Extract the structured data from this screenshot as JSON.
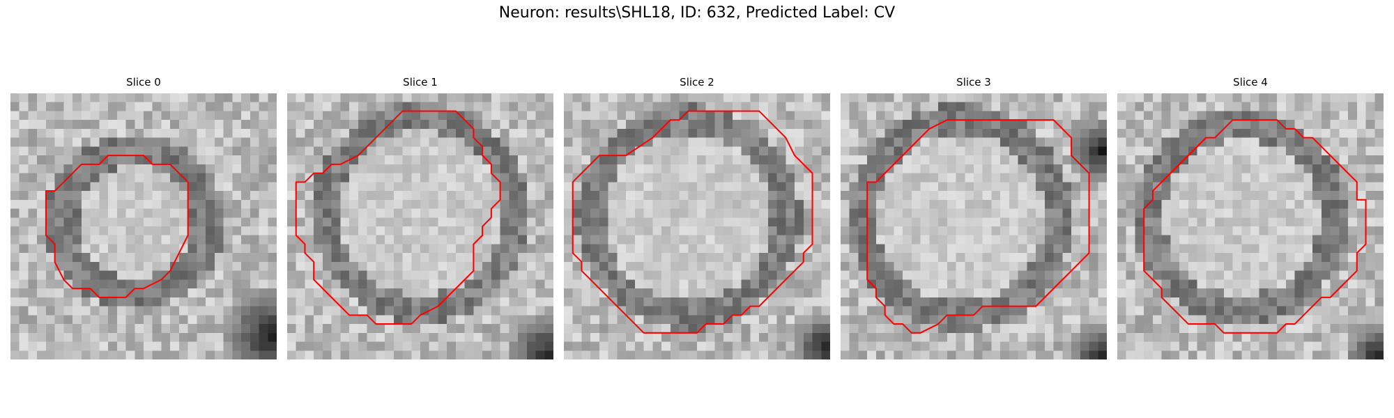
{
  "title": "Neuron: results\\SHL18, ID: 632, Predicted Label: CV",
  "contour_color": "#ff0000",
  "panels": [
    {
      "label": "Slice 0"
    },
    {
      "label": "Slice 1"
    },
    {
      "label": "Slice 2"
    },
    {
      "label": "Slice 3"
    },
    {
      "label": "Slice 4"
    }
  ]
}
